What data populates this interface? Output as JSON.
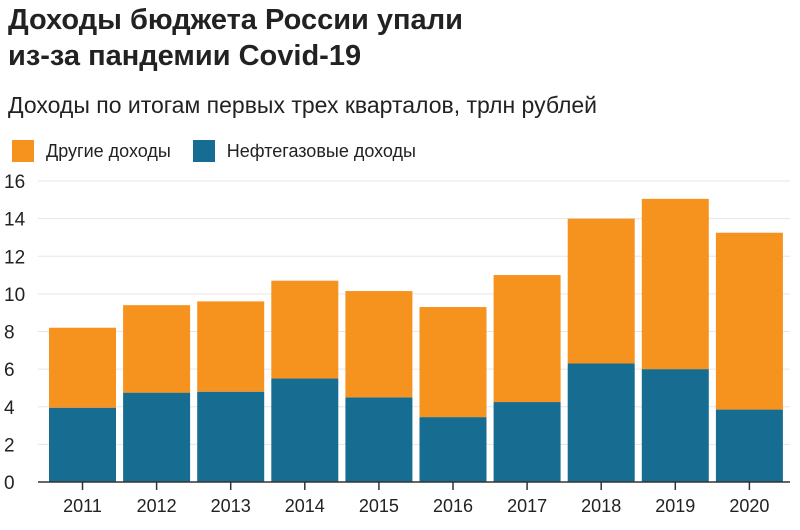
{
  "chart_data": {
    "type": "bar",
    "stacked": true,
    "title": "Доходы бюджета России упали из-за пандемии Covid-19",
    "subtitle": "Доходы по итогам первых трех кварталов, трлн рублей",
    "xlabel": "",
    "ylabel": "",
    "ylim": [
      0,
      16
    ],
    "yticks": [
      0,
      2,
      4,
      6,
      8,
      10,
      12,
      14,
      16
    ],
    "grid": true,
    "legend_position": "top-left",
    "categories": [
      "2011",
      "2012",
      "2013",
      "2014",
      "2015",
      "2016",
      "2017",
      "2018",
      "2019",
      "2020"
    ],
    "series": [
      {
        "name": "Нефтегазовые доходы",
        "color": "#176d91",
        "values": [
          3.95,
          4.75,
          4.8,
          5.5,
          4.5,
          3.45,
          4.25,
          6.3,
          6.0,
          3.85
        ]
      },
      {
        "name": "Другие доходы",
        "color": "#f6921e",
        "values": [
          4.25,
          4.65,
          4.8,
          5.2,
          5.65,
          5.85,
          6.75,
          7.7,
          9.05,
          9.4
        ]
      }
    ]
  }
}
